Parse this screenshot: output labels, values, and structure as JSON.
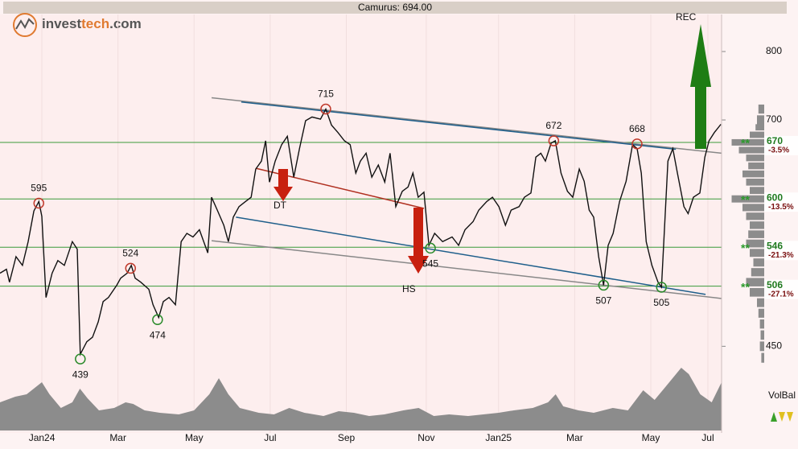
{
  "chart_data": {
    "type": "line",
    "title": "Camurus: 694.00",
    "logo": [
      "invest",
      "tech",
      ".com"
    ],
    "color": "#111111",
    "log_y": true,
    "xlim": [
      -1.1,
      17.86
    ],
    "ylim": [
      380,
      860
    ],
    "xticks": [
      {
        "value": 0,
        "label": "Jan24"
      },
      {
        "value": 2,
        "label": "Mar"
      },
      {
        "value": 4,
        "label": "May"
      },
      {
        "value": 6,
        "label": "Jul"
      },
      {
        "value": 8,
        "label": "Sep"
      },
      {
        "value": 10.1,
        "label": "Nov"
      },
      {
        "value": 12,
        "label": "Jan25"
      },
      {
        "value": 14,
        "label": "Mar"
      },
      {
        "value": 16,
        "label": "May"
      },
      {
        "value": 17.5,
        "label": "Jul"
      }
    ],
    "yticks": [
      450,
      700,
      800
    ],
    "x": [
      -1.1,
      -0.93,
      -0.85,
      -0.68,
      -0.51,
      -0.36,
      -0.21,
      -0.08,
      0,
      0.11,
      0.27,
      0.42,
      0.59,
      0.8,
      0.93,
      1.01,
      1.18,
      1.33,
      1.48,
      1.61,
      1.75,
      1.97,
      2.07,
      2.24,
      2.35,
      2.45,
      2.6,
      2.81,
      2.92,
      3.07,
      3.19,
      3.34,
      3.51,
      3.66,
      3.81,
      3.97,
      4.14,
      4.36,
      4.46,
      4.61,
      4.78,
      4.9,
      5.03,
      5.18,
      5.35,
      5.5,
      5.62,
      5.77,
      5.88,
      5.98,
      6.13,
      6.3,
      6.45,
      6.62,
      6.77,
      6.93,
      7.1,
      7.32,
      7.46,
      7.61,
      7.78,
      7.95,
      8.1,
      8.25,
      8.37,
      8.52,
      8.67,
      8.84,
      9.01,
      9.15,
      9.3,
      9.47,
      9.62,
      9.75,
      9.89,
      10.04,
      10.17,
      10.32,
      10.53,
      10.78,
      10.95,
      11.12,
      11.33,
      11.48,
      11.69,
      11.84,
      12.01,
      12.18,
      12.33,
      12.54,
      12.68,
      12.85,
      12.98,
      13.11,
      13.23,
      13.38,
      13.49,
      13.64,
      13.81,
      13.95,
      14.12,
      14.25,
      14.38,
      14.5,
      14.63,
      14.76,
      14.88,
      15.01,
      15.18,
      15.35,
      15.52,
      15.64,
      15.75,
      15.88,
      16.03,
      16.19,
      16.28,
      16.45,
      16.58,
      16.7,
      16.87,
      16.98,
      17.12,
      17.29,
      17.42,
      17.53,
      17.67,
      17.84
    ],
    "values": [
      519,
      523,
      510,
      536,
      527,
      552,
      586,
      597,
      580,
      495,
      519,
      532,
      527,
      552,
      544,
      443,
      454,
      458,
      472,
      491,
      495,
      507,
      514,
      519,
      527,
      514,
      510,
      503,
      488,
      476,
      491,
      495,
      488,
      552,
      561,
      557,
      565,
      540,
      602,
      587,
      570,
      552,
      579,
      591,
      597,
      602,
      636,
      646,
      672,
      620,
      646,
      667,
      678,
      626,
      662,
      699,
      704,
      701,
      715,
      693,
      683,
      672,
      667,
      631,
      646,
      656,
      626,
      641,
      620,
      656,
      591,
      609,
      614,
      631,
      602,
      608,
      548,
      561,
      552,
      557,
      548,
      565,
      574,
      587,
      597,
      602,
      591,
      570,
      587,
      591,
      602,
      607,
      651,
      656,
      646,
      669,
      672,
      631,
      609,
      602,
      636,
      621,
      587,
      579,
      536,
      507,
      548,
      561,
      597,
      621,
      667,
      662,
      631,
      552,
      527,
      510,
      505,
      646,
      662,
      631,
      591,
      583,
      602,
      607,
      651,
      672,
      683,
      694
    ],
    "supports": [
      {
        "value": 670,
        "change": "-3.5%"
      },
      {
        "value": 600,
        "change": "-13.5%"
      },
      {
        "value": 546,
        "change": "-21.3%"
      },
      {
        "value": 506,
        "change": "-27.1%"
      }
    ],
    "support_marker": "**",
    "trend_lines": [
      {
        "x": [
          4.46,
          17.86
        ],
        "values": [
          731,
          656
        ],
        "color": "#888888"
      },
      {
        "x": [
          5.24,
          16.66
        ],
        "values": [
          725,
          661
        ],
        "color": "#1f5f8b"
      },
      {
        "x": [
          5.1,
          17.44
        ],
        "values": [
          579,
          498
        ],
        "color": "#1f5f8b"
      },
      {
        "x": [
          4.46,
          17.86
        ],
        "values": [
          553,
          494
        ],
        "color": "#888888"
      },
      {
        "x": [
          5.62,
          10.04
        ],
        "values": [
          637,
          589
        ],
        "color": "#b03020"
      }
    ],
    "annotations": [
      {
        "x": -0.08,
        "value": 595,
        "kind": "high"
      },
      {
        "x": 2.33,
        "value": 524,
        "kind": "high"
      },
      {
        "x": 7.46,
        "value": 715,
        "kind": "high"
      },
      {
        "x": 13.45,
        "value": 672,
        "kind": "high"
      },
      {
        "x": 15.64,
        "value": 668,
        "kind": "high"
      },
      {
        "x": 1.01,
        "value": 439,
        "kind": "low"
      },
      {
        "x": 3.04,
        "value": 474,
        "kind": "low"
      },
      {
        "x": 10.21,
        "value": 545,
        "kind": "low"
      },
      {
        "x": 14.76,
        "value": 507,
        "kind": "low"
      },
      {
        "x": 16.28,
        "value": 505,
        "kind": "low"
      }
    ],
    "pattern_labels": [
      "DT",
      "HS",
      "REC"
    ],
    "volume": {
      "label": "VolBal",
      "color": "#8c8c8c",
      "ylim": [
        0,
        100
      ],
      "x": [
        -1.1,
        -0.7,
        -0.4,
        0,
        0.2,
        0.5,
        0.8,
        1.0,
        1.2,
        1.5,
        1.9,
        2.2,
        2.4,
        2.7,
        3.1,
        3.6,
        4.0,
        4.4,
        4.65,
        4.9,
        5.2,
        5.7,
        6.1,
        6.5,
        6.9,
        7.4,
        7.8,
        8.2,
        8.6,
        9.0,
        9.5,
        9.9,
        10.3,
        10.7,
        11.2,
        11.6,
        12.0,
        12.4,
        12.9,
        13.3,
        13.5,
        13.7,
        14.1,
        14.5,
        15.0,
        15.4,
        15.8,
        16.1,
        16.4,
        16.8,
        17.0,
        17.3,
        17.6,
        17.86
      ],
      "values": [
        35,
        42,
        45,
        60,
        45,
        28,
        35,
        52,
        40,
        25,
        28,
        35,
        33,
        25,
        22,
        20,
        25,
        45,
        65,
        45,
        28,
        22,
        20,
        28,
        22,
        18,
        24,
        22,
        18,
        20,
        25,
        28,
        18,
        20,
        18,
        20,
        22,
        25,
        28,
        35,
        45,
        30,
        25,
        22,
        28,
        25,
        50,
        38,
        55,
        78,
        70,
        45,
        35,
        60
      ]
    },
    "volume_profile": {
      "color": "#8c8c8c",
      "xlim": [
        0,
        50
      ],
      "prices": [
        715,
        700,
        690,
        680,
        670,
        660,
        650,
        640,
        630,
        620,
        610,
        600,
        590,
        580,
        570,
        560,
        550,
        540,
        530,
        520,
        510,
        500,
        490,
        480,
        470,
        460,
        450,
        440
      ],
      "values": [
        8,
        10,
        12,
        20,
        45,
        35,
        25,
        22,
        30,
        25,
        20,
        45,
        30,
        25,
        20,
        22,
        25,
        20,
        15,
        18,
        25,
        20,
        10,
        8,
        6,
        5,
        6,
        4
      ]
    }
  }
}
